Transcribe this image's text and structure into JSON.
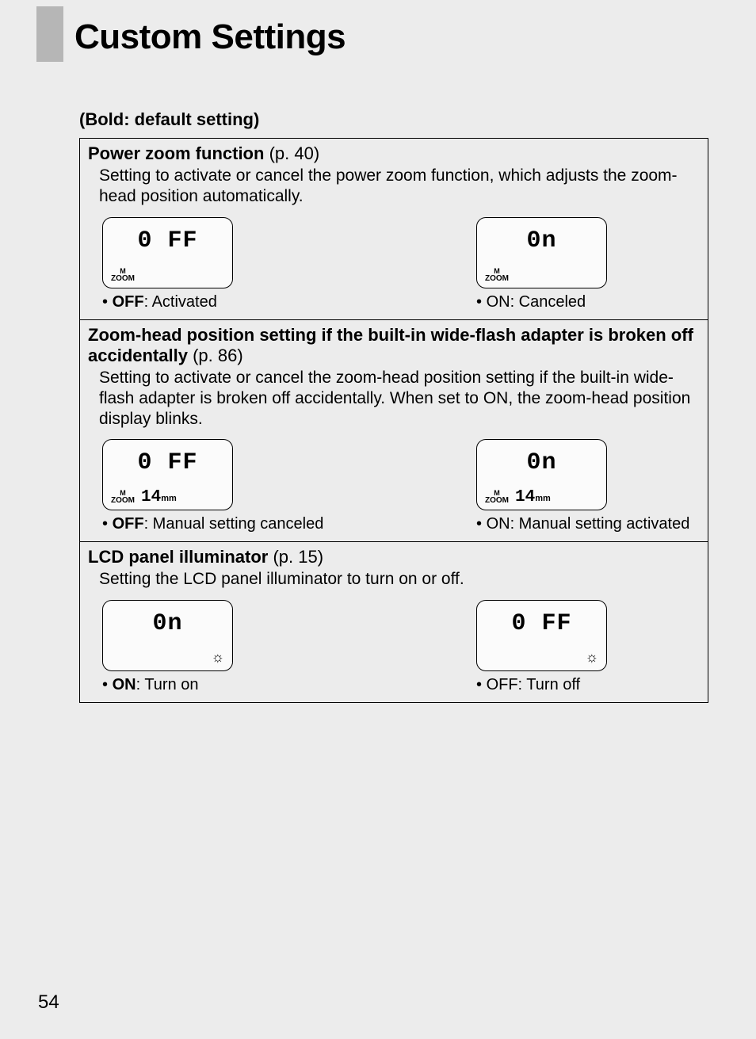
{
  "page_title": "Custom Settings",
  "note": "(Bold: default setting)",
  "page_number": "54",
  "settings": [
    {
      "title_bold": "Power zoom function",
      "title_ref": " (p. 40)",
      "desc": "Setting to activate or cancel the power zoom function, which adjusts the zoom-head position automatically.",
      "opt_left": {
        "lcd_main": "0 FF",
        "show_zoom": true,
        "show_mm": false,
        "show_sun": false,
        "label_bullet": "• ",
        "label_bold": "OFF",
        "label_rest": ": Activated"
      },
      "opt_right": {
        "lcd_main": "0n",
        "show_zoom": true,
        "show_mm": false,
        "show_sun": false,
        "label_bullet": "• ",
        "label_bold": "",
        "label_rest": "ON: Canceled"
      }
    },
    {
      "title_bold": "Zoom-head position setting if the built-in wide-flash adapter is broken off accidentally",
      "title_ref": " (p. 86)",
      "desc": "Setting to activate or cancel the zoom-head position setting if the built-in wide-flash adapter is broken off accidentally. When set to ON, the zoom-head position display blinks.",
      "opt_left": {
        "lcd_main": "0 FF",
        "show_zoom": true,
        "show_mm": true,
        "mm_val": "14",
        "mm_unit": "mm",
        "show_sun": false,
        "label_bullet": "• ",
        "label_bold": "OFF",
        "label_rest": ": Manual setting canceled"
      },
      "opt_right": {
        "lcd_main": "0n",
        "show_zoom": true,
        "show_mm": true,
        "mm_val": "14",
        "mm_unit": "mm",
        "show_sun": false,
        "label_bullet": "• ",
        "label_bold": "",
        "label_rest": "ON: Manual setting activated"
      }
    },
    {
      "title_bold": "LCD panel illuminator",
      "title_ref": " (p. 15)",
      "desc": "Setting the LCD panel illuminator to turn on or off.",
      "opt_left": {
        "lcd_main": "0n",
        "show_zoom": false,
        "show_mm": false,
        "show_sun": true,
        "label_bullet": "• ",
        "label_bold": "ON",
        "label_rest": ": Turn on"
      },
      "opt_right": {
        "lcd_main": "0 FF",
        "show_zoom": false,
        "show_mm": false,
        "show_sun": true,
        "label_bullet": "• ",
        "label_bold": "",
        "label_rest": "OFF: Turn off"
      }
    }
  ]
}
